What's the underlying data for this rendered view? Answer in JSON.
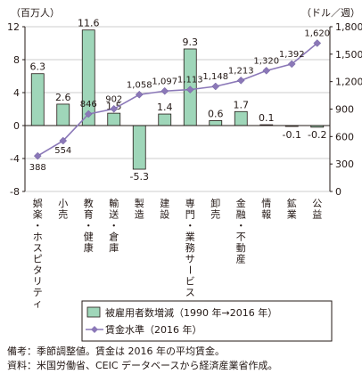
{
  "chart_data": {
    "type": "bar+line",
    "left_axis_unit": "（百万人）",
    "right_axis_unit": "（ドル／週）",
    "left_axis": {
      "min": -8,
      "max": 12,
      "ticks": [
        -8,
        -4,
        0,
        4,
        8,
        12
      ]
    },
    "right_axis": {
      "min": 0,
      "max": 1800,
      "ticks": [
        0,
        300,
        600,
        900,
        1200,
        1500,
        1800
      ]
    },
    "grid": true,
    "categories": [
      "娯楽・ホスピタリティ",
      "小売",
      "教育・健康",
      "輸送・倉庫",
      "製造",
      "建設",
      "専門・業務サービス",
      "卸売",
      "金融・不動産",
      "情報",
      "鉱業",
      "公益"
    ],
    "series": [
      {
        "name": "被雇用者数増減（1990 年→2016 年）",
        "type": "bar",
        "axis": "left",
        "color": "#9fd6b9",
        "values": [
          6.3,
          2.6,
          11.6,
          1.5,
          -5.3,
          1.4,
          9.3,
          0.6,
          1.7,
          0.1,
          -0.1,
          -0.2
        ],
        "labels": [
          "6.3",
          "2.6",
          "11.6",
          "1.5",
          "-5.3",
          "1.4",
          "9.3",
          "0.6",
          "1.7",
          "0.1",
          "-0.1",
          "-0.2"
        ]
      },
      {
        "name": "賃金水準（2016 年）",
        "type": "line",
        "axis": "right",
        "color": "#8b78b8",
        "values": [
          388,
          554,
          846,
          902,
          1058,
          1097,
          1113,
          1148,
          1213,
          1320,
          1392,
          1620
        ],
        "labels": [
          "388",
          "554",
          "846",
          "902",
          "1,058",
          "1,097",
          "1,113",
          "1,148",
          "1,213",
          "1,320",
          "1,392",
          "1,620"
        ]
      }
    ]
  },
  "footnotes": {
    "line1": "備考：季節調整値。賃金は 2016 年の平均賃金。",
    "line2": "資料：米国労働省、CEIC データベースから経済産業省作成。"
  }
}
